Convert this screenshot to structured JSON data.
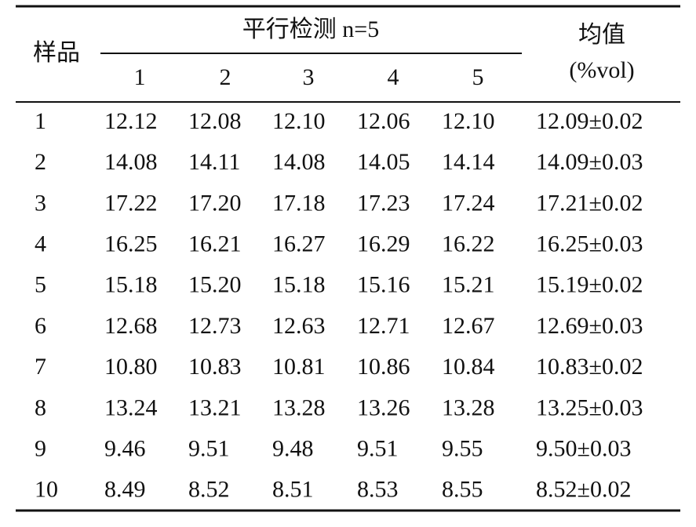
{
  "table": {
    "header": {
      "sample": "样品",
      "group": "平行检测 n=5",
      "replicates": [
        "1",
        "2",
        "3",
        "4",
        "5"
      ],
      "mean": "均值",
      "mean_unit": "(%vol)"
    },
    "rows": [
      [
        "1",
        "12.12",
        "12.08",
        "12.10",
        "12.06",
        "12.10",
        "12.09±0.02"
      ],
      [
        "2",
        "14.08",
        "14.11",
        "14.08",
        "14.05",
        "14.14",
        "14.09±0.03"
      ],
      [
        "3",
        "17.22",
        "17.20",
        "17.18",
        "17.23",
        "17.24",
        "17.21±0.02"
      ],
      [
        "4",
        "16.25",
        "16.21",
        "16.27",
        "16.29",
        "16.22",
        "16.25±0.03"
      ],
      [
        "5",
        "15.18",
        "15.20",
        "15.18",
        "15.16",
        "15.21",
        "15.19±0.02"
      ],
      [
        "6",
        "12.68",
        "12.73",
        "12.63",
        "12.71",
        "12.67",
        "12.69±0.03"
      ],
      [
        "7",
        "10.80",
        "10.83",
        "10.81",
        "10.86",
        "10.84",
        "10.83±0.02"
      ],
      [
        "8",
        "13.24",
        "13.21",
        "13.28",
        "13.26",
        "13.28",
        "13.25±0.03"
      ],
      [
        "9",
        "9.46",
        "9.51",
        "9.48",
        "9.51",
        "9.55",
        "9.50±0.03"
      ],
      [
        "10",
        "8.49",
        "8.52",
        "8.51",
        "8.53",
        "8.55",
        "8.52±0.02"
      ]
    ]
  }
}
